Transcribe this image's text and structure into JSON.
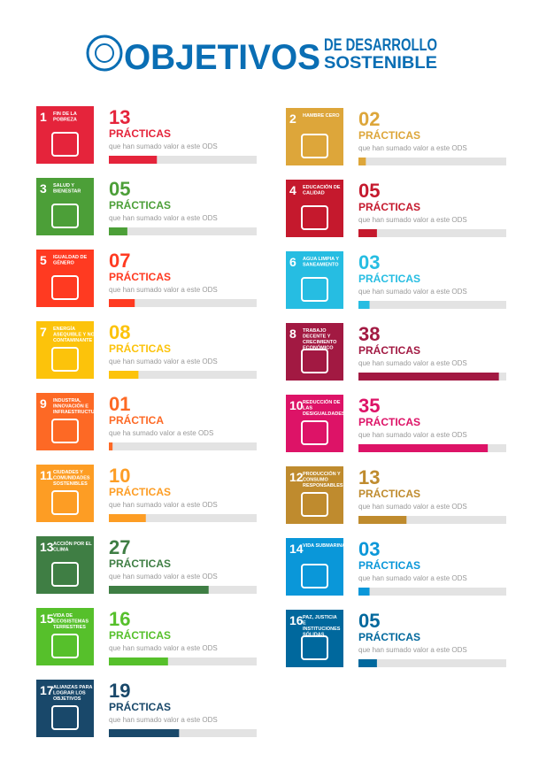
{
  "header": {
    "title": "OBJETIVOS",
    "subtitle_lines": [
      "DE DESARROLLO",
      "SOSTENIBLE"
    ]
  },
  "items": [
    {
      "number": 1,
      "title": "FIN DE LA POBREZA",
      "color": "#e5243b",
      "value": 13,
      "value_label": "13",
      "unit": "PRÁCTICAS",
      "note": "que han sumado valor a este ODS"
    },
    {
      "number": 2,
      "title": "HAMBRE CERO",
      "color": "#dda63a",
      "value": 2,
      "value_label": "02",
      "unit": "PRÁCTICAS",
      "note": "que han sumado valor a este ODS"
    },
    {
      "number": 3,
      "title": "SALUD Y BIENESTAR",
      "color": "#4c9f38",
      "value": 5,
      "value_label": "05",
      "unit": "PRÁCTICAS",
      "note": "que han sumado valor a este ODS"
    },
    {
      "number": 4,
      "title": "EDUCACIÓN DE CALIDAD",
      "color": "#c5192d",
      "value": 5,
      "value_label": "05",
      "unit": "PRÁCTICAS",
      "note": "que han sumado valor a este ODS"
    },
    {
      "number": 5,
      "title": "IGUALDAD DE GÉNERO",
      "color": "#ff3a21",
      "value": 7,
      "value_label": "07",
      "unit": "PRÁCTICAS",
      "note": "que han sumado valor a este ODS"
    },
    {
      "number": 6,
      "title": "AGUA LIMPIA Y SANEAMIENTO",
      "color": "#26bde2",
      "value": 3,
      "value_label": "03",
      "unit": "PRÁCTICAS",
      "note": "que han sumado valor a este ODS"
    },
    {
      "number": 7,
      "title": "ENERGÍA ASEQUIBLE Y NO CONTAMINANTE",
      "color": "#fcc30b",
      "value": 8,
      "value_label": "08",
      "unit": "PRÁCTICAS",
      "note": "que han sumado valor a este ODS"
    },
    {
      "number": 8,
      "title": "TRABAJO DECENTE Y CRECIMIENTO ECONÓMICO",
      "color": "#a21942",
      "value": 38,
      "value_label": "38",
      "unit": "PRÁCTICAS",
      "note": "que han sumado valor a este ODS"
    },
    {
      "number": 9,
      "title": "INDUSTRIA, INNOVACIÓN E INFRAESTRUCTURA",
      "color": "#fd6925",
      "value": 1,
      "value_label": "01",
      "unit": "PRÁCTICA",
      "note": "que ha sumado valor a este ODS"
    },
    {
      "number": 10,
      "title": "REDUCCIÓN DE LAS DESIGUALDADES",
      "color": "#dd1367",
      "value": 35,
      "value_label": "35",
      "unit": "PRÁCTICAS",
      "note": "que han sumado valor a este ODS"
    },
    {
      "number": 11,
      "title": "CIUDADES Y COMUNIDADES SOSTENIBLES",
      "color": "#fd9d24",
      "value": 10,
      "value_label": "10",
      "unit": "PRÁCTICAS",
      "note": "que han sumado valor a este ODS"
    },
    {
      "number": 12,
      "title": "PRODUCCIÓN Y CONSUMO RESPONSABLES",
      "color": "#bf8b2e",
      "value": 13,
      "value_label": "13",
      "unit": "PRÁCTICAS",
      "note": "que han sumado valor a este ODS"
    },
    {
      "number": 13,
      "title": "ACCIÓN POR EL CLIMA",
      "color": "#3f7e44",
      "value": 27,
      "value_label": "27",
      "unit": "PRÁCTICAS",
      "note": "que han sumado valor a este ODS"
    },
    {
      "number": 14,
      "title": "VIDA SUBMARINA",
      "color": "#0a97d9",
      "value": 3,
      "value_label": "03",
      "unit": "PRÁCTICAS",
      "note": "que han sumado valor a este ODS"
    },
    {
      "number": 15,
      "title": "VIDA DE ECOSISTEMAS TERRESTRES",
      "color": "#56c02b",
      "value": 16,
      "value_label": "16",
      "unit": "PRÁCTICAS",
      "note": "que han sumado valor a este ODS"
    },
    {
      "number": 16,
      "title": "PAZ, JUSTICIA E INSTITUCIONES SÓLIDAS",
      "color": "#00689d",
      "value": 5,
      "value_label": "05",
      "unit": "PRÁCTICAS",
      "note": "que han sumado valor a este ODS"
    },
    {
      "number": 17,
      "title": "ALIANZAS PARA LOGRAR LOS OBJETIVOS",
      "color": "#19486a",
      "value": 19,
      "value_label": "19",
      "unit": "PRÁCTICAS",
      "note": "que han sumado valor a este ODS"
    }
  ]
}
